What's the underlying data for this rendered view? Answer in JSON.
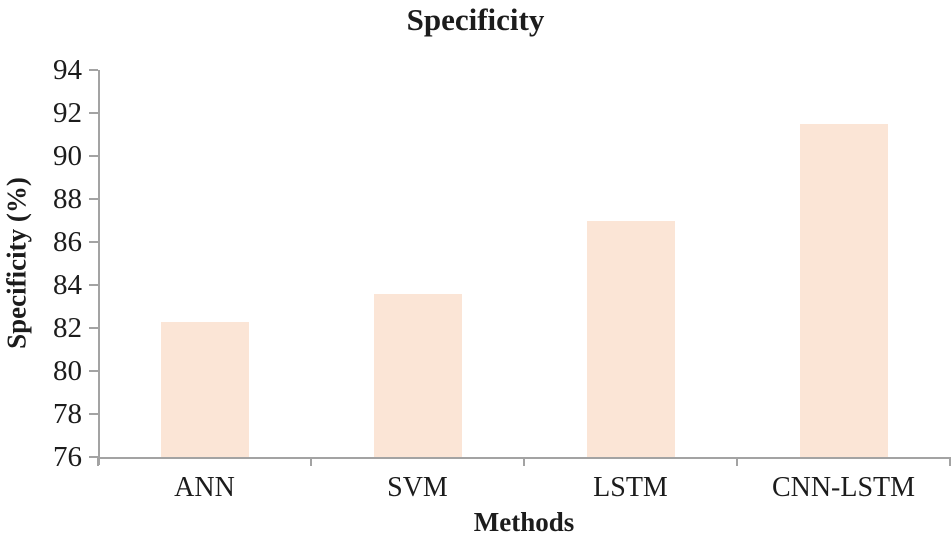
{
  "chart_data": {
    "type": "bar",
    "title": "Specificity",
    "xlabel": "Methods",
    "ylabel": "Specificity (%)",
    "categories": [
      "ANN",
      "SVM",
      "LSTM",
      "CNN-LSTM"
    ],
    "values": [
      82.3,
      83.6,
      87.0,
      91.5
    ],
    "ylim": [
      76,
      94
    ],
    "yticks": [
      76,
      78,
      80,
      82,
      84,
      86,
      88,
      90,
      92,
      94
    ],
    "grid": false,
    "legend_position": "none",
    "colors": {
      "bar_fill": "#fbe5d6",
      "axis_line": "#a3a3a3",
      "text": "#1c1c1c",
      "background": "#ffffff"
    }
  }
}
